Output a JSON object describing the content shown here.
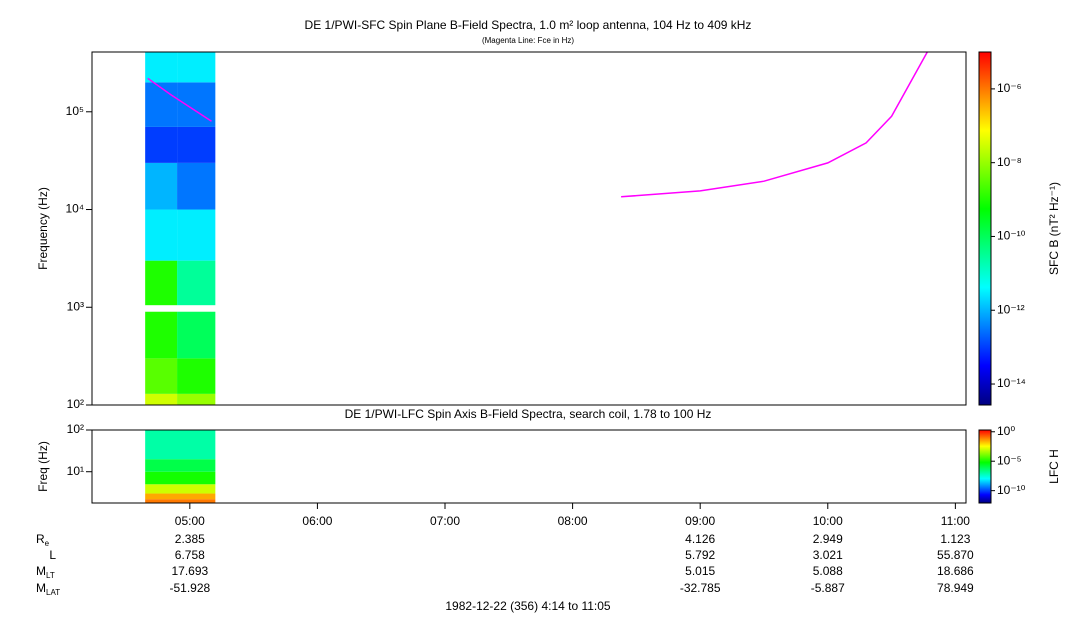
{
  "chart_data": [
    {
      "type": "spectrogram",
      "title": "DE 1/PWI-SFC  Spin Plane B-Field Spectra, 1.0 m² loop antenna, 104 Hz to 409 kHz",
      "subtitle": "(Magenta Line: Fce in Hz)",
      "y_label": "Frequency (Hz)",
      "colorbar_label": "SFC B (nT² Hz⁻¹)",
      "xlim": [
        4.2333,
        11.0833
      ],
      "ylim": [
        100,
        409000
      ],
      "y_log": true,
      "yticks": [
        {
          "value": 100,
          "label": "10²"
        },
        {
          "value": 1000,
          "label": "10³"
        },
        {
          "value": 10000,
          "label": "10⁴"
        },
        {
          "value": 100000,
          "label": "10⁵"
        }
      ],
      "zlim": [
        2.7e-15,
        1e-05
      ],
      "z_log": true,
      "zticks": [
        {
          "value": 1e-06,
          "label": "10⁻⁶"
        },
        {
          "value": 1e-08,
          "label": "10⁻⁸"
        },
        {
          "value": 1e-10,
          "label": "10⁻¹⁰"
        },
        {
          "value": 1e-12,
          "label": "10⁻¹²"
        },
        {
          "value": 1e-14,
          "label": "10⁻¹⁴"
        }
      ],
      "colormap": [
        "#000080",
        "#0000ff",
        "#0080ff",
        "#00ffff",
        "#00ff80",
        "#00ff00",
        "#80ff00",
        "#ffff00",
        "#ff8000",
        "#ff0000"
      ],
      "time_edges": [
        4.65,
        4.9,
        5.2
      ],
      "freq_edges": [
        100,
        130,
        300,
        900,
        1050,
        3000,
        10000,
        30000,
        70000,
        200000,
        409000
      ],
      "z": [
        [
          3e-08,
          1e-08
        ],
        [
          3e-09,
          1e-09
        ],
        [
          1e-09,
          1e-10
        ],
        [
          null,
          null
        ],
        [
          1e-09,
          3e-11
        ],
        [
          3e-12,
          3e-12
        ],
        [
          1e-12,
          3e-13
        ],
        [
          1e-13,
          1e-13
        ],
        [
          3e-13,
          3e-13
        ],
        [
          3e-12,
          3e-12
        ]
      ],
      "line": {
        "color": "#ff00ff",
        "x": [
          4.67,
          4.85,
          5.17,
          5.5,
          8.38,
          9.0,
          9.5,
          10.0,
          10.3,
          10.5,
          10.78
        ],
        "values": [
          220000,
          150000,
          80000,
          null,
          13500,
          15500,
          19500,
          30000,
          48000,
          90000,
          409000
        ]
      }
    },
    {
      "type": "spectrogram",
      "title": "DE 1/PWI-LFC  Spin Axis B-Field Spectra, search coil, 1.78 to 100 Hz",
      "y_label": "Freq (Hz)",
      "colorbar_label": "LFC H",
      "xlim": [
        4.2333,
        11.0833
      ],
      "xticks": [
        {
          "value": 5,
          "label": "05:00"
        },
        {
          "value": 6,
          "label": "06:00"
        },
        {
          "value": 7,
          "label": "07:00"
        },
        {
          "value": 8,
          "label": "08:00"
        },
        {
          "value": 9,
          "label": "09:00"
        },
        {
          "value": 10,
          "label": "10:00"
        },
        {
          "value": 11,
          "label": "11:00"
        }
      ],
      "ylim": [
        1.78,
        100
      ],
      "y_log": true,
      "yticks": [
        {
          "value": 10,
          "label": "10¹"
        },
        {
          "value": 100,
          "label": "10²"
        }
      ],
      "zlim": [
        8e-13,
        2
      ],
      "z_log": true,
      "zticks": [
        {
          "value": 1,
          "label": "10⁰"
        },
        {
          "value": 1e-05,
          "label": "10⁻⁵"
        },
        {
          "value": 1e-10,
          "label": "10⁻¹⁰"
        }
      ],
      "colormap": [
        "#000080",
        "#0000ff",
        "#0080ff",
        "#00ffff",
        "#00ff80",
        "#00ff00",
        "#80ff00",
        "#ffff00",
        "#ff8000",
        "#ff0000"
      ],
      "time_edges": [
        4.65,
        5.2
      ],
      "freq_edges": [
        1.78,
        2.2,
        3,
        5,
        10,
        20,
        100
      ],
      "z": [
        [
          0.1
        ],
        [
          0.03
        ],
        [
          0.001
        ],
        [
          1e-05
        ],
        [
          1e-06
        ],
        [
          1e-07
        ]
      ]
    }
  ],
  "ephemeris": {
    "rows": [
      {
        "label": "R",
        "label_sub": "e",
        "values": [
          "2.385",
          null,
          null,
          null,
          "4.126",
          "2.949",
          "1.123"
        ]
      },
      {
        "label": "L",
        "values": [
          "6.758",
          null,
          null,
          null,
          "5.792",
          "3.021",
          "55.870"
        ]
      },
      {
        "label": "M",
        "label_sub": "LT",
        "values": [
          "17.693",
          null,
          null,
          null,
          "5.015",
          "5.088",
          "18.686"
        ]
      },
      {
        "label": "M",
        "label_sub": "LAT",
        "values": [
          "-51.928",
          null,
          null,
          null,
          "-32.785",
          "-5.887",
          "78.949"
        ]
      }
    ]
  },
  "footer": "1982-12-22 (356) 4:14 to 11:05"
}
